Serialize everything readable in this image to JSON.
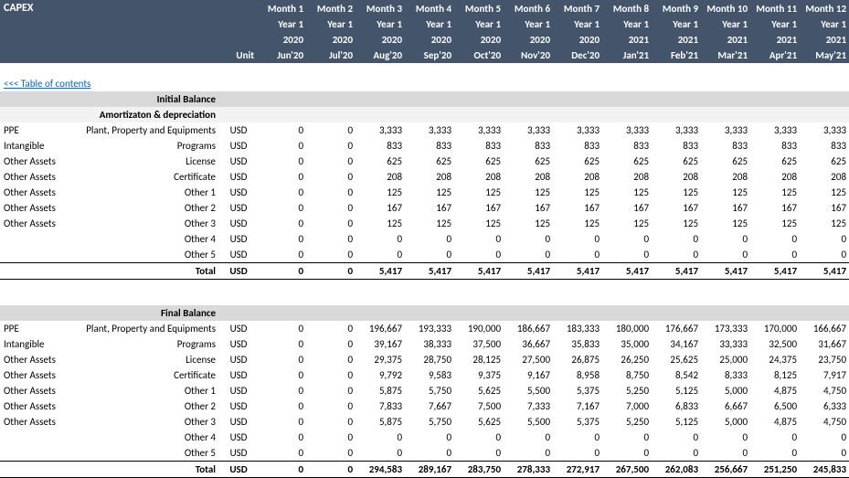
{
  "title": "CAPEX",
  "toc_link": "<<< Table of contents",
  "unit_label": "Unit",
  "header": {
    "months": [
      "Month 1",
      "Month 2",
      "Month 3",
      "Month 4",
      "Month 5",
      "Month 6",
      "Month 7",
      "Month 8",
      "Month 9",
      "Month 10",
      "Month 11",
      "Month 12"
    ],
    "years": [
      "Year 1",
      "Year 1",
      "Year 1",
      "Year 1",
      "Year 1",
      "Year 1",
      "Year 1",
      "Year 1",
      "Year 1",
      "Year 1",
      "Year 1",
      "Year 1"
    ],
    "y_num": [
      "2020",
      "2020",
      "2020",
      "2020",
      "2020",
      "2020",
      "2020",
      "2021",
      "2021",
      "2021",
      "2021",
      "2021"
    ],
    "period": [
      "Jun'20",
      "Jul'20",
      "Aug'20",
      "Sep'20",
      "Oct'20",
      "Nov'20",
      "Dec'20",
      "Jan'21",
      "Feb'21",
      "Mar'21",
      "Apr'21",
      "May'21"
    ]
  },
  "sections": {
    "initial": "Initial Balance",
    "amort": "Amortizaton & depreciation",
    "final": "Final Balance"
  },
  "amort_rows": [
    {
      "cat": "PPE",
      "desc": "Plant, Property and Equipments",
      "unit": "USD",
      "v": [
        "0",
        "0",
        "3,333",
        "3,333",
        "3,333",
        "3,333",
        "3,333",
        "3,333",
        "3,333",
        "3,333",
        "3,333",
        "3,333"
      ]
    },
    {
      "cat": "Intangible",
      "desc": "Programs",
      "unit": "USD",
      "v": [
        "0",
        "0",
        "833",
        "833",
        "833",
        "833",
        "833",
        "833",
        "833",
        "833",
        "833",
        "833"
      ]
    },
    {
      "cat": "Other Assets",
      "desc": "License",
      "unit": "USD",
      "v": [
        "0",
        "0",
        "625",
        "625",
        "625",
        "625",
        "625",
        "625",
        "625",
        "625",
        "625",
        "625"
      ]
    },
    {
      "cat": "Other Assets",
      "desc": "Certificate",
      "unit": "USD",
      "v": [
        "0",
        "0",
        "208",
        "208",
        "208",
        "208",
        "208",
        "208",
        "208",
        "208",
        "208",
        "208"
      ]
    },
    {
      "cat": "Other Assets",
      "desc": "Other 1",
      "unit": "USD",
      "v": [
        "0",
        "0",
        "125",
        "125",
        "125",
        "125",
        "125",
        "125",
        "125",
        "125",
        "125",
        "125"
      ]
    },
    {
      "cat": "Other Assets",
      "desc": "Other 2",
      "unit": "USD",
      "v": [
        "0",
        "0",
        "167",
        "167",
        "167",
        "167",
        "167",
        "167",
        "167",
        "167",
        "167",
        "167"
      ]
    },
    {
      "cat": "Other Assets",
      "desc": "Other 3",
      "unit": "USD",
      "v": [
        "0",
        "0",
        "125",
        "125",
        "125",
        "125",
        "125",
        "125",
        "125",
        "125",
        "125",
        "125"
      ]
    },
    {
      "cat": "",
      "desc": "Other 4",
      "unit": "USD",
      "v": [
        "0",
        "0",
        "0",
        "0",
        "0",
        "0",
        "0",
        "0",
        "0",
        "0",
        "0",
        "0"
      ]
    },
    {
      "cat": "",
      "desc": "Other 5",
      "unit": "USD",
      "v": [
        "0",
        "0",
        "0",
        "0",
        "0",
        "0",
        "0",
        "0",
        "0",
        "0",
        "0",
        "0"
      ]
    }
  ],
  "amort_total": {
    "label": "Total",
    "unit": "USD",
    "v": [
      "0",
      "0",
      "5,417",
      "5,417",
      "5,417",
      "5,417",
      "5,417",
      "5,417",
      "5,417",
      "5,417",
      "5,417",
      "5,417"
    ]
  },
  "final_rows": [
    {
      "cat": "PPE",
      "desc": "Plant, Property and Equipments",
      "unit": "USD",
      "v": [
        "0",
        "0",
        "196,667",
        "193,333",
        "190,000",
        "186,667",
        "183,333",
        "180,000",
        "176,667",
        "173,333",
        "170,000",
        "166,667"
      ]
    },
    {
      "cat": "Intangible",
      "desc": "Programs",
      "unit": "USD",
      "v": [
        "0",
        "0",
        "39,167",
        "38,333",
        "37,500",
        "36,667",
        "35,833",
        "35,000",
        "34,167",
        "33,333",
        "32,500",
        "31,667"
      ]
    },
    {
      "cat": "Other Assets",
      "desc": "License",
      "unit": "USD",
      "v": [
        "0",
        "0",
        "29,375",
        "28,750",
        "28,125",
        "27,500",
        "26,875",
        "26,250",
        "25,625",
        "25,000",
        "24,375",
        "23,750"
      ]
    },
    {
      "cat": "Other Assets",
      "desc": "Certificate",
      "unit": "USD",
      "v": [
        "0",
        "0",
        "9,792",
        "9,583",
        "9,375",
        "9,167",
        "8,958",
        "8,750",
        "8,542",
        "8,333",
        "8,125",
        "7,917"
      ]
    },
    {
      "cat": "Other Assets",
      "desc": "Other 1",
      "unit": "USD",
      "v": [
        "0",
        "0",
        "5,875",
        "5,750",
        "5,625",
        "5,500",
        "5,375",
        "5,250",
        "5,125",
        "5,000",
        "4,875",
        "4,750"
      ]
    },
    {
      "cat": "Other Assets",
      "desc": "Other 2",
      "unit": "USD",
      "v": [
        "0",
        "0",
        "7,833",
        "7,667",
        "7,500",
        "7,333",
        "7,167",
        "7,000",
        "6,833",
        "6,667",
        "6,500",
        "6,333"
      ]
    },
    {
      "cat": "Other Assets",
      "desc": "Other 3",
      "unit": "USD",
      "v": [
        "0",
        "0",
        "5,875",
        "5,750",
        "5,625",
        "5,500",
        "5,375",
        "5,250",
        "5,125",
        "5,000",
        "4,875",
        "4,750"
      ]
    },
    {
      "cat": "",
      "desc": "Other 4",
      "unit": "USD",
      "v": [
        "0",
        "0",
        "0",
        "0",
        "0",
        "0",
        "0",
        "0",
        "0",
        "0",
        "0",
        "0"
      ]
    },
    {
      "cat": "",
      "desc": "Other 5",
      "unit": "USD",
      "v": [
        "0",
        "0",
        "0",
        "0",
        "0",
        "0",
        "0",
        "0",
        "0",
        "0",
        "0",
        "0"
      ]
    }
  ],
  "final_total": {
    "label": "Total",
    "unit": "USD",
    "v": [
      "0",
      "0",
      "294,583",
      "289,167",
      "283,750",
      "278,333",
      "272,917",
      "267,500",
      "262,083",
      "256,667",
      "251,250",
      "245,833"
    ]
  },
  "colors": {
    "header_bg": "#44546a",
    "section_bg": "#d9d9d9",
    "subsection_bg": "#f2f2f2",
    "link": "#0563c1"
  }
}
